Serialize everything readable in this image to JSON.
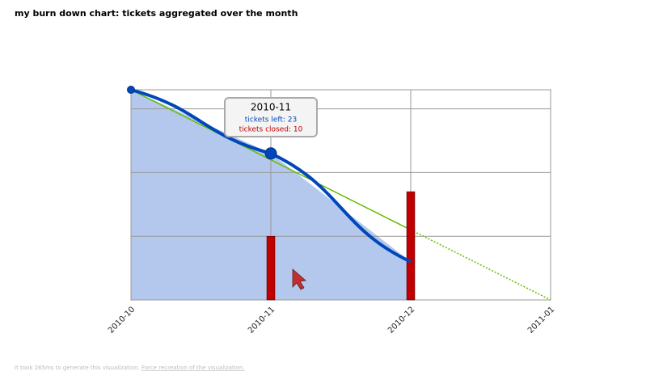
{
  "title": "my burn down chart: tickets aggregated over the month",
  "chart_data": {
    "type": "burndown",
    "categories": [
      "2010-10",
      "2010-11",
      "2010-12",
      "2011-01"
    ],
    "series": [
      {
        "color": "#0047bb",
        "fill": "#b3c8ec",
        "values": [
          33,
          23,
          6,
          null
        ]
      },
      {
        "color": "#c00000",
        "values": [
          null,
          10,
          17,
          null
        ]
      },
      {
        "color": "#66bb00",
        "values": [
          33,
          22,
          11,
          0
        ]
      }
    ],
    "ylim": [
      0,
      33
    ],
    "yticks": [
      0,
      10,
      20,
      30
    ],
    "grid": true,
    "tooltip": {
      "title": "2010-11",
      "lines": [
        "tickets left: 23",
        "tickets closed: 10"
      ],
      "index": 1
    }
  },
  "footer": {
    "text": "It took 265ms to generate this visualization.",
    "link": "Force recreation of the visualization."
  }
}
